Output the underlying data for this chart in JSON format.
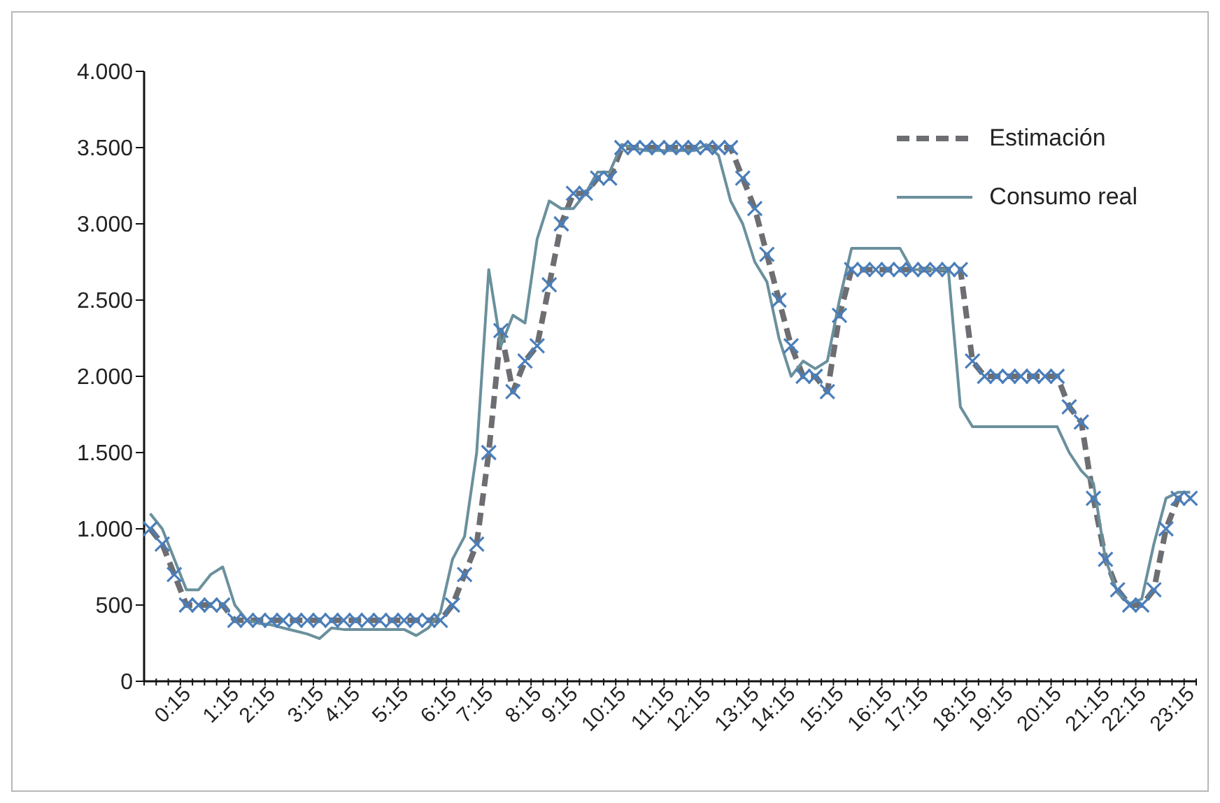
{
  "chart_data": {
    "type": "line",
    "categories": [
      null,
      null,
      null,
      "0:15",
      null,
      null,
      null,
      "1:15",
      null,
      null,
      "2:15",
      null,
      null,
      null,
      "3:15",
      null,
      null,
      "4:15",
      null,
      null,
      null,
      "5:15",
      null,
      null,
      null,
      "6:15",
      null,
      null,
      "7:15",
      null,
      null,
      null,
      "8:15",
      null,
      null,
      "9:15",
      null,
      null,
      null,
      "10:15",
      null,
      null,
      null,
      "11:15",
      null,
      null,
      "12:15",
      null,
      null,
      null,
      "13:15",
      null,
      null,
      "14:15",
      null,
      null,
      null,
      "15:15",
      null,
      null,
      null,
      "16:15",
      null,
      null,
      "17:15",
      null,
      null,
      null,
      "18:15",
      null,
      null,
      "19:15",
      null,
      null,
      null,
      "20:15",
      null,
      null,
      null,
      "21:15",
      null,
      null,
      "22:15",
      null,
      null,
      null,
      "23:15"
    ],
    "series": [
      {
        "name": "Estimación",
        "color": "#6d6e71",
        "line_style": "dashed",
        "values": [
          1000,
          900,
          700,
          500,
          500,
          500,
          500,
          400,
          400,
          400,
          400,
          400,
          400,
          400,
          400,
          400,
          400,
          400,
          400,
          400,
          400,
          400,
          400,
          400,
          400,
          500,
          700,
          900,
          1500,
          2300,
          1900,
          2100,
          2200,
          2600,
          3000,
          3200,
          3200,
          3300,
          3300,
          3500,
          3500,
          3500,
          3500,
          3500,
          3500,
          3500,
          3500,
          3500,
          3500,
          3300,
          3100,
          2800,
          2500,
          2200,
          2000,
          2000,
          1900,
          2400,
          2700,
          2700,
          2700,
          2700,
          2700,
          2700,
          2700,
          2700,
          2700,
          2700,
          2100,
          2000,
          2000,
          2000,
          2000,
          2000,
          2000,
          2000,
          1800,
          1700,
          1200,
          800,
          600,
          500,
          500,
          600,
          1000,
          1200,
          1200
        ]
      },
      {
        "name": "Consumo real",
        "color": "#6a909c",
        "line_style": "solid",
        "values": [
          1100,
          1000,
          800,
          600,
          600,
          700,
          750,
          500,
          400,
          380,
          370,
          350,
          330,
          310,
          280,
          350,
          340,
          340,
          340,
          340,
          340,
          340,
          300,
          350,
          450,
          800,
          950,
          1500,
          2700,
          2200,
          2400,
          2350,
          2900,
          3150,
          3100,
          3100,
          3200,
          3340,
          3340,
          3520,
          3500,
          3480,
          3480,
          3480,
          3480,
          3480,
          3520,
          3450,
          3150,
          3000,
          2750,
          2620,
          2250,
          2000,
          2100,
          2050,
          2100,
          2500,
          2840,
          2840,
          2840,
          2840,
          2840,
          2700,
          2700,
          2700,
          2700,
          1800,
          1670,
          1670,
          1670,
          1670,
          1670,
          1670,
          1670,
          1670,
          1500,
          1380,
          1300,
          800,
          580,
          510,
          540,
          900,
          1200,
          1240,
          1240
        ]
      },
      {
        "type": "scatter",
        "color": "#4a7ebb",
        "marker": "cross",
        "values": [
          1000,
          900,
          700,
          500,
          500,
          500,
          500,
          400,
          400,
          400,
          400,
          400,
          400,
          400,
          400,
          400,
          400,
          400,
          400,
          400,
          400,
          400,
          400,
          400,
          400,
          500,
          700,
          900,
          1500,
          2300,
          1900,
          2100,
          2200,
          2600,
          3000,
          3200,
          3200,
          3300,
          3300,
          3500,
          3500,
          3500,
          3500,
          3500,
          3500,
          3500,
          3500,
          3500,
          3500,
          3300,
          3100,
          2800,
          2500,
          2200,
          2000,
          2000,
          1900,
          2400,
          2700,
          2700,
          2700,
          2700,
          2700,
          2700,
          2700,
          2700,
          2700,
          2700,
          2100,
          2000,
          2000,
          2000,
          2000,
          2000,
          2000,
          2000,
          1800,
          1700,
          1200,
          800,
          600,
          500,
          500,
          600,
          1000,
          1200,
          1200
        ]
      }
    ],
    "ylim": [
      0,
      4000
    ],
    "yticks": [
      0,
      {
        "value": 500,
        "label": "500"
      },
      {
        "value": 1000,
        "label": "1.000"
      },
      {
        "value": 1500,
        "label": "1.500"
      },
      {
        "value": 2000,
        "label": "2.000"
      },
      {
        "value": 2500,
        "label": "2.500"
      },
      {
        "value": 3000,
        "label": "3.000"
      },
      {
        "value": 3500,
        "label": "3.500"
      },
      {
        "value": 4000,
        "label": "4.000"
      }
    ],
    "grid": false,
    "legend": "top right"
  }
}
